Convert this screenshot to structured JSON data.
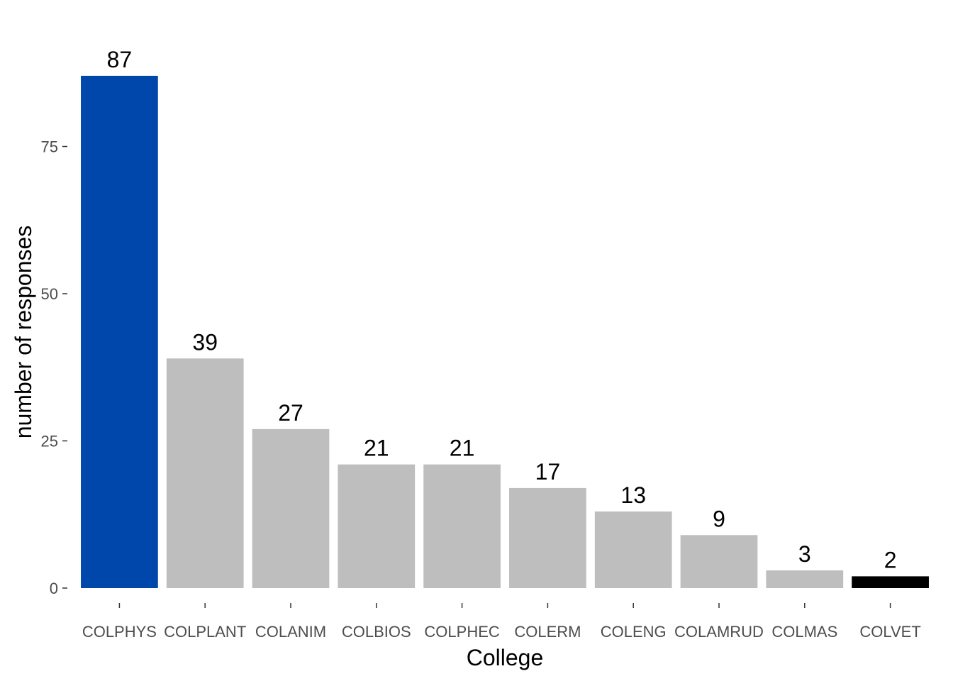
{
  "chart_data": {
    "type": "bar",
    "categories": [
      "COLPHYS",
      "COLPLANT",
      "COLANIM",
      "COLBIOS",
      "COLPHEC",
      "COLERM",
      "COLENG",
      "COLAMRUD",
      "COLMAS",
      "COLVET"
    ],
    "values": [
      87,
      39,
      27,
      21,
      21,
      17,
      13,
      9,
      3,
      2
    ],
    "bar_colors": [
      "#0047ab",
      "#bebebe",
      "#bebebe",
      "#bebebe",
      "#bebebe",
      "#bebebe",
      "#bebebe",
      "#bebebe",
      "#bebebe",
      "#000000"
    ],
    "xlabel": "College",
    "ylabel": "number of responses",
    "ylim": [
      0,
      87
    ],
    "yticks": [
      0,
      25,
      50,
      75
    ],
    "grid": false,
    "legend": "none"
  }
}
